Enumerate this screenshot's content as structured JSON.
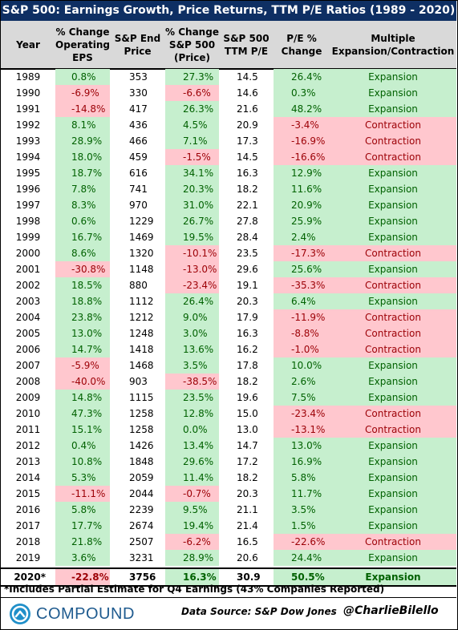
{
  "title": "S&P 500: Earnings Growth, Price Returns, TTM P/E Ratios (1989 - 2020)",
  "colors": {
    "title_bg": "#0e2f63",
    "positive": "#c6efce",
    "negative": "#ffc7ce",
    "header_bg": "#d9d9d9",
    "brand": "#1f5b8f"
  },
  "chart_data": {
    "type": "table",
    "columns": [
      "Year",
      "% Change\nOperating\nEPS",
      "S&P End\nPrice",
      "% Change\nS&P 500\n(Price)",
      "S&P 500\nTTM P/E",
      "P/E %\nChange",
      "Multiple\nExpansion/Contraction"
    ],
    "rows": [
      [
        "1989",
        "0.8%",
        "353",
        "27.3%",
        "14.5",
        "26.4%",
        "Expansion"
      ],
      [
        "1990",
        "-6.9%",
        "330",
        "-6.6%",
        "14.6",
        "0.3%",
        "Expansion"
      ],
      [
        "1991",
        "-14.8%",
        "417",
        "26.3%",
        "21.6",
        "48.2%",
        "Expansion"
      ],
      [
        "1992",
        "8.1%",
        "436",
        "4.5%",
        "20.9",
        "-3.4%",
        "Contraction"
      ],
      [
        "1993",
        "28.9%",
        "466",
        "7.1%",
        "17.3",
        "-16.9%",
        "Contraction"
      ],
      [
        "1994",
        "18.0%",
        "459",
        "-1.5%",
        "14.5",
        "-16.6%",
        "Contraction"
      ],
      [
        "1995",
        "18.7%",
        "616",
        "34.1%",
        "16.3",
        "12.9%",
        "Expansion"
      ],
      [
        "1996",
        "7.8%",
        "741",
        "20.3%",
        "18.2",
        "11.6%",
        "Expansion"
      ],
      [
        "1997",
        "8.3%",
        "970",
        "31.0%",
        "22.1",
        "20.9%",
        "Expansion"
      ],
      [
        "1998",
        "0.6%",
        "1229",
        "26.7%",
        "27.8",
        "25.9%",
        "Expansion"
      ],
      [
        "1999",
        "16.7%",
        "1469",
        "19.5%",
        "28.4",
        "2.4%",
        "Expansion"
      ],
      [
        "2000",
        "8.6%",
        "1320",
        "-10.1%",
        "23.5",
        "-17.3%",
        "Contraction"
      ],
      [
        "2001",
        "-30.8%",
        "1148",
        "-13.0%",
        "29.6",
        "25.6%",
        "Expansion"
      ],
      [
        "2002",
        "18.5%",
        "880",
        "-23.4%",
        "19.1",
        "-35.3%",
        "Contraction"
      ],
      [
        "2003",
        "18.8%",
        "1112",
        "26.4%",
        "20.3",
        "6.4%",
        "Expansion"
      ],
      [
        "2004",
        "23.8%",
        "1212",
        "9.0%",
        "17.9",
        "-11.9%",
        "Contraction"
      ],
      [
        "2005",
        "13.0%",
        "1248",
        "3.0%",
        "16.3",
        "-8.8%",
        "Contraction"
      ],
      [
        "2006",
        "14.7%",
        "1418",
        "13.6%",
        "16.2",
        "-1.0%",
        "Contraction"
      ],
      [
        "2007",
        "-5.9%",
        "1468",
        "3.5%",
        "17.8",
        "10.0%",
        "Expansion"
      ],
      [
        "2008",
        "-40.0%",
        "903",
        "-38.5%",
        "18.2",
        "2.6%",
        "Expansion"
      ],
      [
        "2009",
        "14.8%",
        "1115",
        "23.5%",
        "19.6",
        "7.5%",
        "Expansion"
      ],
      [
        "2010",
        "47.3%",
        "1258",
        "12.8%",
        "15.0",
        "-23.4%",
        "Contraction"
      ],
      [
        "2011",
        "15.1%",
        "1258",
        "0.0%",
        "13.0",
        "-13.1%",
        "Contraction"
      ],
      [
        "2012",
        "0.4%",
        "1426",
        "13.4%",
        "14.7",
        "13.0%",
        "Expansion"
      ],
      [
        "2013",
        "10.8%",
        "1848",
        "29.6%",
        "17.2",
        "16.9%",
        "Expansion"
      ],
      [
        "2014",
        "5.3%",
        "2059",
        "11.4%",
        "18.2",
        "5.8%",
        "Expansion"
      ],
      [
        "2015",
        "-11.1%",
        "2044",
        "-0.7%",
        "20.3",
        "11.7%",
        "Expansion"
      ],
      [
        "2016",
        "5.8%",
        "2239",
        "9.5%",
        "21.1",
        "3.5%",
        "Expansion"
      ],
      [
        "2017",
        "17.7%",
        "2674",
        "19.4%",
        "21.4",
        "1.5%",
        "Expansion"
      ],
      [
        "2018",
        "21.8%",
        "2507",
        "-6.2%",
        "16.5",
        "-22.6%",
        "Contraction"
      ],
      [
        "2019",
        "3.6%",
        "3231",
        "28.9%",
        "20.6",
        "24.4%",
        "Expansion"
      ],
      [
        "2020*",
        "-22.8%",
        "3756",
        "16.3%",
        "30.9",
        "50.5%",
        "Expansion"
      ]
    ]
  },
  "footnote": "*Includes Partial Estimate for Q4 Earnings (43% Companies Reported)",
  "footer": {
    "logo_text": "COMPOUND",
    "source": "Data Source: S&P Dow Jones",
    "handle": "@CharlieBilello"
  }
}
